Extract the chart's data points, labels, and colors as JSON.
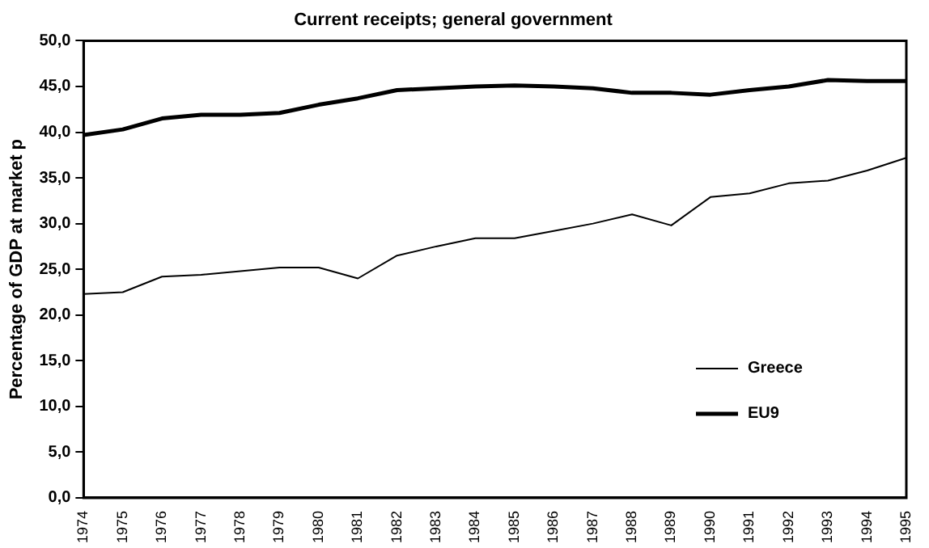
{
  "chart_data": {
    "type": "line",
    "title": "Current receipts; general government",
    "ylabel": "Percentage of GDP at market p",
    "categories": [
      "1974",
      "1975",
      "1976",
      "1977",
      "1978",
      "1979",
      "1980",
      "1981",
      "1982",
      "1983",
      "1984",
      "1985",
      "1986",
      "1987",
      "1988",
      "1989",
      "1990",
      "1991",
      "1992",
      "1993",
      "1994",
      "1995"
    ],
    "series": [
      {
        "name": "Greece",
        "color": "#000000",
        "values": [
          22.3,
          22.5,
          24.2,
          24.4,
          24.8,
          25.2,
          25.2,
          24.0,
          26.5,
          27.5,
          28.4,
          28.4,
          29.2,
          30.0,
          31.0,
          29.8,
          32.9,
          33.3,
          34.4,
          34.7,
          35.8,
          37.2
        ]
      },
      {
        "name": "EU9",
        "color": "#000000",
        "values": [
          39.7,
          40.3,
          41.5,
          41.9,
          41.9,
          42.1,
          43.0,
          43.7,
          44.6,
          44.8,
          45.0,
          45.1,
          45.0,
          44.8,
          44.3,
          44.3,
          44.1,
          44.6,
          45.0,
          45.7,
          45.6,
          45.6
        ]
      }
    ],
    "ylim": [
      0,
      50
    ],
    "yticks": [
      {
        "value": 0,
        "label": "0,0"
      },
      {
        "value": 5,
        "label": "5,0"
      },
      {
        "value": 10,
        "label": "10,0"
      },
      {
        "value": 15,
        "label": "15,0"
      },
      {
        "value": 20,
        "label": "20,0"
      },
      {
        "value": 25,
        "label": "25,0"
      },
      {
        "value": 30,
        "label": "30,0"
      },
      {
        "value": 35,
        "label": "35,0"
      },
      {
        "value": 40,
        "label": "40,0"
      },
      {
        "value": 45,
        "label": "45,0"
      },
      {
        "value": 50,
        "label": "50,0"
      }
    ],
    "grid": false,
    "legend": "bottom right",
    "marker": "none",
    "line_style": "solid"
  }
}
